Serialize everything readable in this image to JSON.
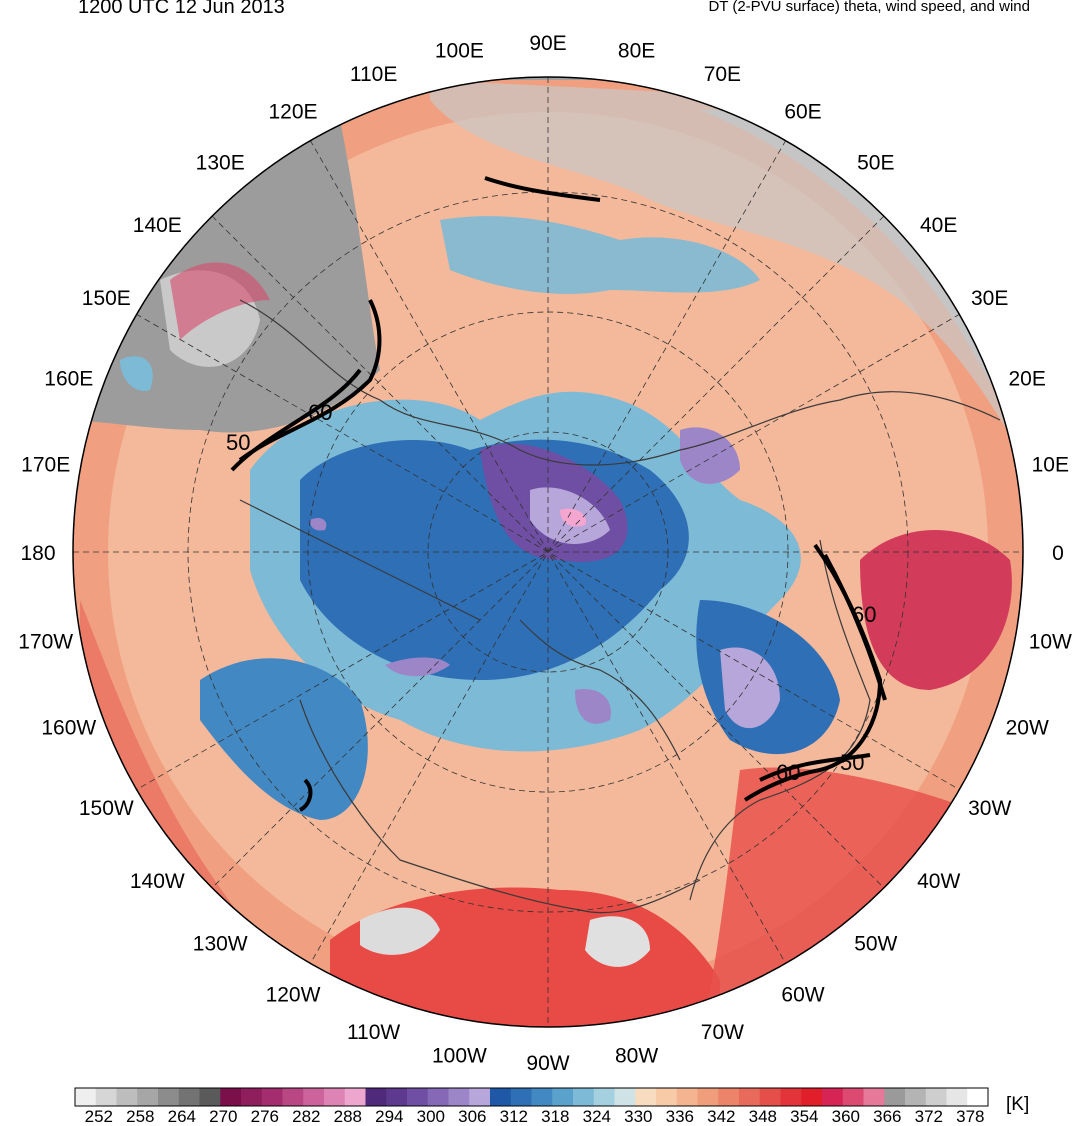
{
  "title_left": "1200 UTC 12 Jun 2013",
  "title_right": "DT (2-PVU surface) theta, wind speed, and wind",
  "longitude_labels": [
    "90E",
    "80E",
    "70E",
    "60E",
    "50E",
    "40E",
    "30E",
    "20E",
    "10E",
    "0",
    "10W",
    "20W",
    "30W",
    "40W",
    "50W",
    "60W",
    "70W",
    "80W",
    "90W",
    "100W",
    "110W",
    "120W",
    "130W",
    "140W",
    "150W",
    "160W",
    "170W",
    "180",
    "170E",
    "160E",
    "150E",
    "140E",
    "130E",
    "120E",
    "110E",
    "100E"
  ],
  "contour_labels": [
    "60",
    "50",
    "60",
    "60",
    "50"
  ],
  "colorbar": {
    "tick_labels": [
      "252",
      "258",
      "264",
      "270",
      "276",
      "282",
      "288",
      "294",
      "300",
      "306",
      "312",
      "318",
      "324",
      "330",
      "336",
      "342",
      "348",
      "354",
      "360",
      "366",
      "372",
      "378"
    ],
    "units": "[K]",
    "colors": [
      "#efefef",
      "#d6d6d6",
      "#bdbdbd",
      "#a6a6a6",
      "#8c8c8c",
      "#737373",
      "#5a5a5a",
      "#7a0f4a",
      "#8e1f5c",
      "#a32d6e",
      "#b94783",
      "#cc649b",
      "#de84b4",
      "#eda6cd",
      "#4f2a7a",
      "#5e3a8e",
      "#6f4fa3",
      "#8569b6",
      "#9c86c8",
      "#b6a6da",
      "#1e58a6",
      "#2e6fb6",
      "#4288c2",
      "#5aa2cc",
      "#7dbad6",
      "#a4d0df",
      "#cfe3e6",
      "#f7dcc0",
      "#f7caa8",
      "#f4b48f",
      "#f09d7b",
      "#eb8468",
      "#e86a5a",
      "#e54f4a",
      "#e2343a",
      "#e01f2b",
      "#d62454",
      "#dc4a72",
      "#e6789a",
      "#9a9a9a",
      "#b4b4b4",
      "#cecece",
      "#e6e6e6",
      "#ffffff"
    ]
  }
}
